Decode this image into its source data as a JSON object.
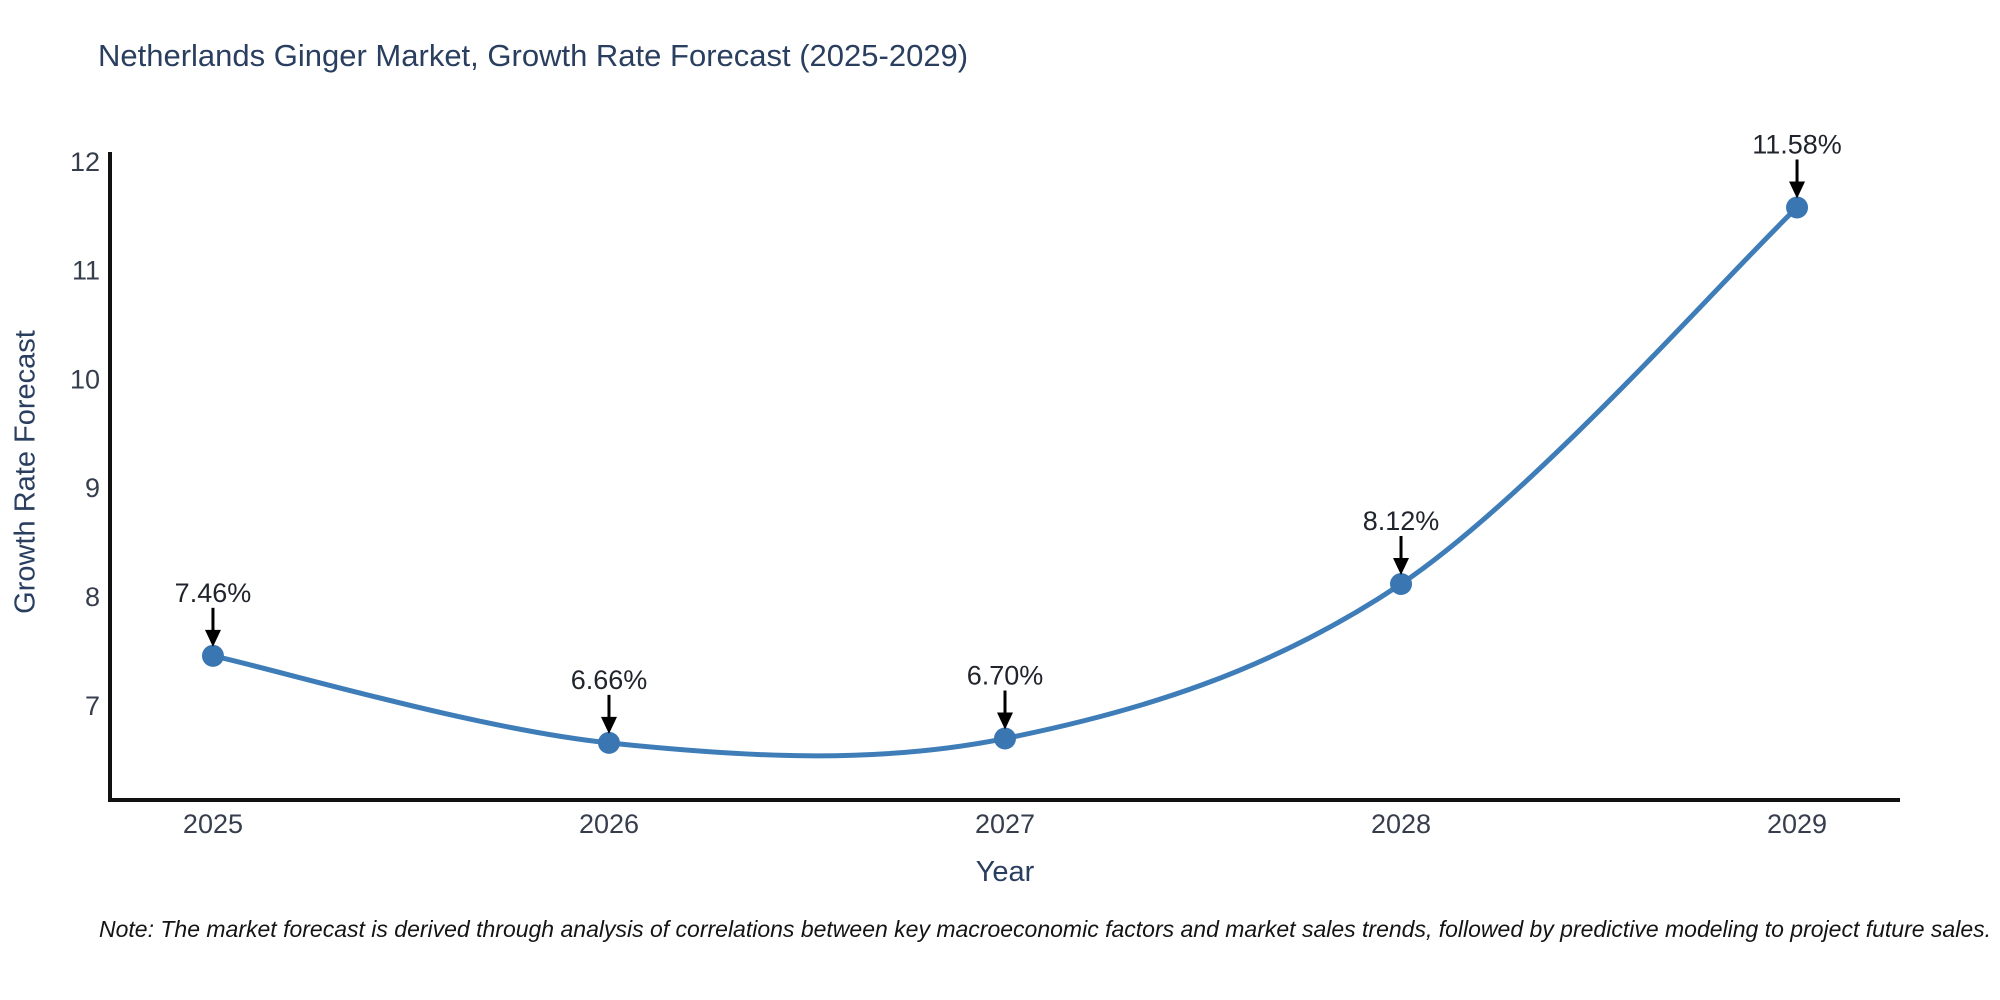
{
  "title": "Netherlands Ginger Market, Growth Rate Forecast (2025-2029)",
  "note": "Note: The market forecast is derived through analysis of correlations between key macroeconomic factors and market sales trends, followed by predictive modeling to project future sales.",
  "chart_data": {
    "type": "line",
    "title": "Netherlands Ginger Market, Growth Rate Forecast (2025-2029)",
    "xlabel": "Year",
    "ylabel": "Growth Rate Forecast",
    "x": [
      2025,
      2026,
      2027,
      2028,
      2029
    ],
    "y": [
      7.46,
      6.66,
      6.7,
      8.12,
      11.58
    ],
    "point_labels": [
      "7.46%",
      "6.66%",
      "6.70%",
      "8.12%",
      "11.58%"
    ],
    "xticks": [
      "2025",
      "2026",
      "2027",
      "2028",
      "2029"
    ],
    "yticks": [
      7,
      8,
      9,
      10,
      11,
      12
    ],
    "xlim": [
      2024.74,
      2029.26
    ],
    "ylim": [
      6.135,
      12.09
    ],
    "line_shape": "spline",
    "grid": false,
    "legend": "none",
    "colors": {
      "line": "#3f7db8",
      "marker": "#3a76b2",
      "axis": "#111111",
      "arrow": "#000000",
      "title_text": "#2a3f5f",
      "tick_text": "#363d4c"
    }
  }
}
